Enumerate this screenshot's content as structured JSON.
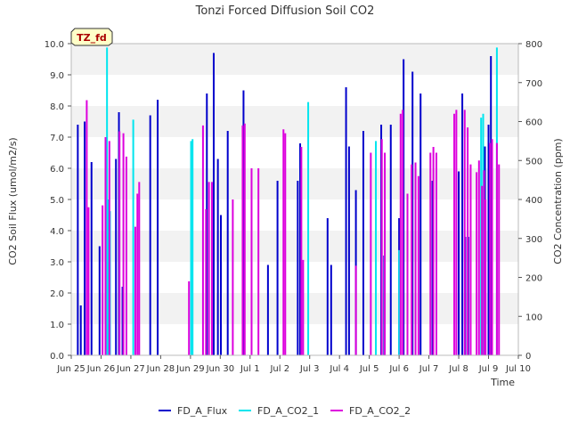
{
  "chart_data": {
    "type": "bar",
    "title": "Tonzi Forced Diffusion Soil CO2",
    "tag": "TZ_fd",
    "xlabel": "Time",
    "ylabel": "CO2 Soil Flux (umol/m2/s)",
    "y2label": "CO2 Concentration (ppm)",
    "xlim": [
      0,
      15
    ],
    "ylim": [
      0,
      10
    ],
    "y2lim": [
      0,
      800
    ],
    "x_tick_labels": [
      "Jun 25",
      "Jun 26",
      "Jun 27",
      "Jun 28",
      "Jun 29",
      "Jun 30",
      "Jul 1",
      "Jul 2",
      "Jul 3",
      "Jul 4",
      "Jul 5",
      "Jul 6",
      "Jul 7",
      "Jul 8",
      "Jul 9",
      "Jul 10"
    ],
    "y_tick_labels": [
      "0.0",
      "1.0",
      "2.0",
      "3.0",
      "4.0",
      "5.0",
      "6.0",
      "7.0",
      "8.0",
      "9.0",
      "10.0"
    ],
    "y2_tick_labels": [
      "0",
      "100",
      "200",
      "300",
      "400",
      "500",
      "600",
      "700",
      "800"
    ],
    "legend_position": "bottom-center",
    "grid": false,
    "background_bands": true,
    "colors": {
      "FD_A_Flux": "#0000cc",
      "FD_A_CO2_1": "#00e5ee",
      "FD_A_CO2_2": "#dd00dd",
      "band": "#f2f2f2"
    },
    "series": [
      {
        "name": "FD_A_Flux",
        "axis": "left",
        "x": [
          0.22,
          0.32,
          0.45,
          0.68,
          0.95,
          1.5,
          1.6,
          1.72,
          2.65,
          2.9,
          4.55,
          4.78,
          4.92,
          5.02,
          5.25,
          5.78,
          6.6,
          6.92,
          7.6,
          7.68,
          8.6,
          8.72,
          9.22,
          9.32,
          9.55,
          9.8,
          10.4,
          10.5,
          10.72,
          11.0,
          11.15,
          11.45,
          11.72,
          12.12,
          13.0,
          13.12,
          13.22,
          13.32,
          13.88,
          14.0,
          14.08
        ],
        "values": [
          7.4,
          1.6,
          7.5,
          6.2,
          3.5,
          6.3,
          7.8,
          2.2,
          7.7,
          8.2,
          8.4,
          9.7,
          6.3,
          4.5,
          7.2,
          8.5,
          2.9,
          5.6,
          5.6,
          6.8,
          4.4,
          2.9,
          8.6,
          6.7,
          5.3,
          7.2,
          7.4,
          3.2,
          7.4,
          4.4,
          9.5,
          9.1,
          8.4,
          5.6,
          5.9,
          8.4,
          3.8,
          3.8,
          6.7,
          7.4,
          9.6
        ]
      },
      {
        "name": "FD_A_CO2_1",
        "axis": "right",
        "x": [
          1.2,
          1.25,
          1.3,
          2.08,
          4.02,
          4.07,
          7.95,
          10.22,
          11.0,
          13.75,
          13.82,
          14.28
        ],
        "values": [
          790,
          400,
          370,
          605,
          550,
          555,
          650,
          550,
          270,
          610,
          620,
          790
        ]
      },
      {
        "name": "FD_A_CO2_2",
        "axis": "right",
        "x": [
          0.52,
          0.58,
          1.05,
          1.15,
          1.28,
          1.62,
          1.75,
          1.85,
          2.15,
          2.22,
          2.28,
          3.95,
          4.42,
          4.52,
          4.62,
          4.72,
          5.42,
          5.75,
          5.82,
          6.05,
          6.28,
          7.12,
          7.18,
          7.72,
          7.78,
          9.55,
          10.05,
          10.42,
          10.52,
          11.05,
          11.12,
          11.28,
          11.42,
          11.55,
          11.65,
          12.05,
          12.15,
          12.25,
          12.85,
          12.92,
          13.2,
          13.3,
          13.4,
          13.6,
          13.68,
          13.78,
          13.85,
          13.9,
          14.05,
          14.12,
          14.28,
          14.35
        ],
        "values": [
          655,
          380,
          385,
          560,
          550,
          575,
          570,
          510,
          330,
          415,
          445,
          190,
          590,
          375,
          445,
          445,
          400,
          590,
          595,
          480,
          480,
          580,
          570,
          535,
          245,
          230,
          520,
          555,
          520,
          620,
          630,
          415,
          490,
          495,
          460,
          520,
          535,
          520,
          620,
          630,
          630,
          585,
          490,
          470,
          500,
          435,
          475,
          400,
          545,
          555,
          545,
          490
        ]
      }
    ]
  }
}
